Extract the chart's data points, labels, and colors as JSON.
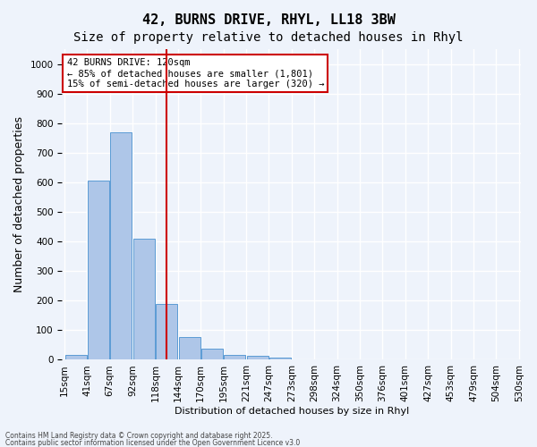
{
  "title1": "42, BURNS DRIVE, RHYL, LL18 3BW",
  "title2": "Size of property relative to detached houses in Rhyl",
  "xlabel": "Distribution of detached houses by size in Rhyl",
  "ylabel": "Number of detached properties",
  "bins": [
    "15sqm",
    "41sqm",
    "67sqm",
    "92sqm",
    "118sqm",
    "144sqm",
    "170sqm",
    "195sqm",
    "221sqm",
    "247sqm",
    "273sqm",
    "298sqm",
    "324sqm",
    "350sqm",
    "376sqm",
    "401sqm",
    "427sqm",
    "453sqm",
    "479sqm",
    "504sqm",
    "530sqm"
  ],
  "values": [
    15,
    605,
    770,
    410,
    190,
    78,
    38,
    18,
    12,
    8,
    0,
    0,
    0,
    0,
    0,
    0,
    0,
    0,
    0,
    0
  ],
  "bar_color": "#aec6e8",
  "bar_edge_color": "#5b9bd5",
  "vline_x_index": 4,
  "vline_color": "#cc0000",
  "ylim": [
    0,
    1050
  ],
  "yticks": [
    0,
    100,
    200,
    300,
    400,
    500,
    600,
    700,
    800,
    900,
    1000
  ],
  "annotation_title": "42 BURNS DRIVE: 120sqm",
  "annotation_line1": "← 85% of detached houses are smaller (1,801)",
  "annotation_line2": "15% of semi-detached houses are larger (320) →",
  "annotation_box_color": "#ffffff",
  "annotation_box_edge": "#cc0000",
  "footer1": "Contains HM Land Registry data © Crown copyright and database right 2025.",
  "footer2": "Contains public sector information licensed under the Open Government Licence v3.0",
  "bg_color": "#eef3fb",
  "plot_bg_color": "#eef3fb",
  "grid_color": "#ffffff",
  "title_fontsize": 11,
  "subtitle_fontsize": 10,
  "tick_fontsize": 7.5,
  "ylabel_fontsize": 9
}
